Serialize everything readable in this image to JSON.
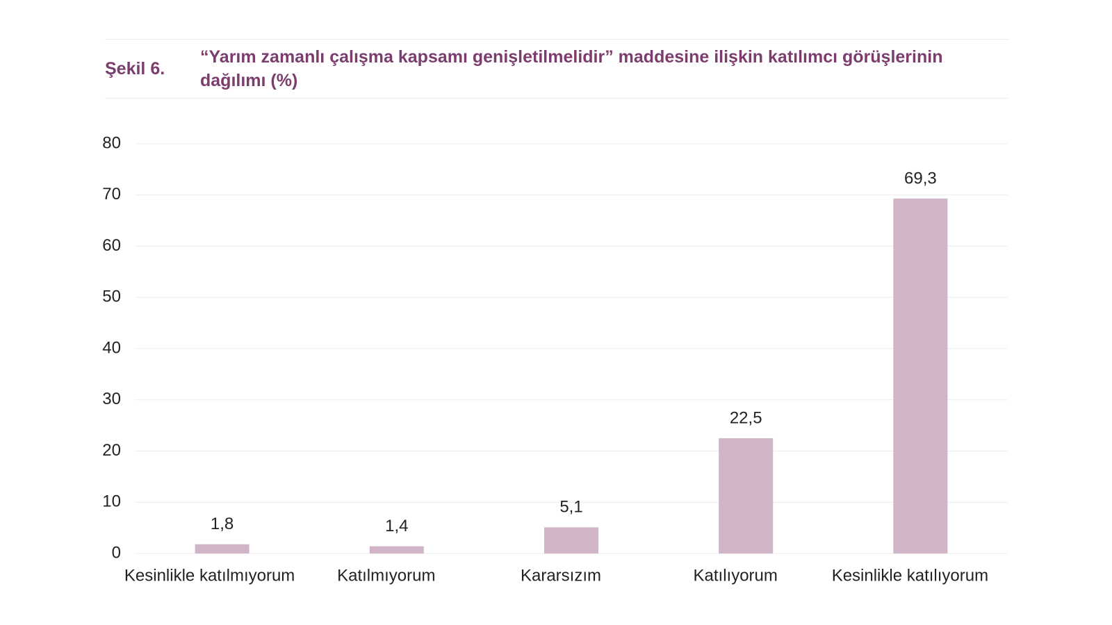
{
  "chart_data": {
    "type": "bar",
    "figure_label": "Şekil 6.",
    "title": "“Yarım zamanlı çalışma kapsamı genişletilmelidir” maddesine ilişkin katılımcı görüşlerinin dağılımı (%)",
    "categories": [
      "Kesinlikle katılmıyorum",
      "Katılmıyorum",
      "Kararsızım",
      "Katılıyorum",
      "Kesinlikle katılıyorum"
    ],
    "values": [
      1.8,
      1.4,
      5.1,
      22.5,
      69.3
    ],
    "value_labels": [
      "1,8",
      "1,4",
      "5,1",
      "22,5",
      "69,3"
    ],
    "color": "#d0b4c8",
    "ylim": [
      0,
      80
    ],
    "yticks": [
      0,
      10,
      20,
      30,
      40,
      50,
      60,
      70,
      80
    ],
    "grid": true
  }
}
